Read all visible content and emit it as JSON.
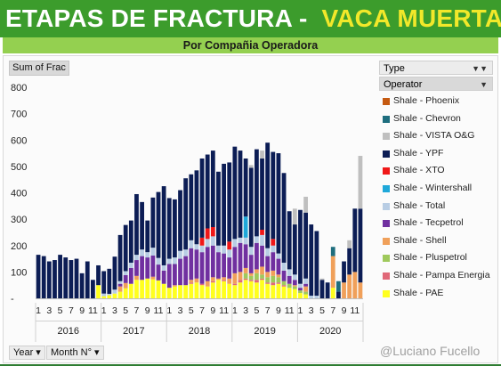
{
  "header": {
    "title_main": "ETAPAS DE FRACTURA -",
    "title_highlight": "VACA MUERTA",
    "subtitle": "Por Compañia Operadora"
  },
  "pivot": {
    "values_field": "Sum of Frac",
    "legend_field": "Type",
    "legend_subfield": "Operator",
    "year_button": "Year",
    "month_button": "Month N°"
  },
  "credit": "@Luciano Fucello",
  "colors": {
    "banner": "#3c9c2c",
    "title_highlight": "#f2e82a",
    "subbar": "#94d050"
  },
  "chart_data": {
    "type": "bar",
    "stacked": true,
    "ylim": [
      0,
      800
    ],
    "yticks": [
      0,
      100,
      200,
      300,
      400,
      500,
      600,
      700,
      800
    ],
    "zero_tick_label": "-",
    "month_labels": [
      "1",
      "3",
      "5",
      "7",
      "9",
      "11"
    ],
    "years": [
      "2016",
      "2017",
      "2018",
      "2019",
      "2020"
    ],
    "series": [
      {
        "name": "Shale - PAE",
        "color": "#ffff1e",
        "values": [
          0,
          0,
          0,
          0,
          0,
          0,
          0,
          0,
          0,
          0,
          0,
          50,
          8,
          12,
          18,
          25,
          38,
          55,
          70,
          70,
          75,
          72,
          68,
          55,
          40,
          45,
          50,
          50,
          55,
          60,
          50,
          45,
          60,
          70,
          65,
          55,
          50,
          60,
          70,
          65,
          60,
          70,
          55,
          50,
          55,
          45,
          40,
          35,
          20,
          15,
          0,
          0,
          0,
          0,
          40,
          0,
          0,
          0,
          0,
          0
        ]
      },
      {
        "name": "Shale - Pampa Energia",
        "color": "#e06878",
        "values": [
          0,
          0,
          0,
          0,
          0,
          0,
          0,
          0,
          0,
          0,
          0,
          0,
          0,
          0,
          0,
          0,
          0,
          0,
          0,
          0,
          0,
          0,
          0,
          0,
          0,
          0,
          0,
          0,
          5,
          0,
          5,
          0,
          5,
          0,
          5,
          0,
          5,
          10,
          5,
          5,
          10,
          5,
          5,
          10,
          5,
          5,
          0,
          0,
          0,
          0,
          0,
          0,
          0,
          0,
          0,
          0,
          0,
          0,
          0,
          0
        ]
      },
      {
        "name": "Shale - Pluspetrol",
        "color": "#9fc95c",
        "values": [
          0,
          0,
          0,
          0,
          0,
          0,
          0,
          0,
          0,
          0,
          0,
          0,
          0,
          0,
          0,
          0,
          0,
          0,
          0,
          0,
          0,
          0,
          0,
          0,
          0,
          0,
          0,
          0,
          0,
          0,
          0,
          0,
          0,
          0,
          0,
          0,
          0,
          0,
          20,
          15,
          25,
          15,
          20,
          25,
          20,
          15,
          15,
          10,
          10,
          10,
          0,
          0,
          0,
          0,
          0,
          0,
          0,
          0,
          0,
          0
        ]
      },
      {
        "name": "Shale - Shell",
        "color": "#f0a05a",
        "values": [
          0,
          0,
          0,
          0,
          0,
          0,
          0,
          0,
          0,
          0,
          0,
          0,
          0,
          0,
          0,
          20,
          20,
          0,
          15,
          0,
          0,
          10,
          0,
          0,
          0,
          5,
          0,
          0,
          10,
          15,
          0,
          20,
          15,
          5,
          10,
          20,
          40,
          30,
          20,
          10,
          15,
          30,
          20,
          20,
          10,
          0,
          0,
          5,
          0,
          20,
          0,
          0,
          0,
          0,
          120,
          0,
          60,
          90,
          100,
          60
        ]
      },
      {
        "name": "Shale - Tecpetrol",
        "color": "#7030a0",
        "values": [
          0,
          0,
          0,
          0,
          0,
          0,
          0,
          0,
          0,
          0,
          0,
          0,
          0,
          0,
          0,
          10,
          30,
          60,
          60,
          90,
          80,
          80,
          60,
          50,
          90,
          80,
          100,
          110,
          120,
          110,
          120,
          130,
          120,
          100,
          90,
          80,
          100,
          110,
          90,
          70,
          100,
          80,
          60,
          70,
          60,
          40,
          30,
          20,
          10,
          10,
          0,
          0,
          0,
          0,
          0,
          0,
          0,
          0,
          0,
          0
        ]
      },
      {
        "name": "Shale - Total",
        "color": "#b8cde4",
        "values": [
          0,
          0,
          0,
          0,
          0,
          0,
          0,
          0,
          0,
          0,
          0,
          0,
          10,
          5,
          15,
          10,
          15,
          20,
          20,
          25,
          20,
          30,
          25,
          20,
          20,
          25,
          30,
          25,
          30,
          20,
          25,
          30,
          35,
          25,
          30,
          30,
          30,
          20,
          25,
          30,
          25,
          40,
          30,
          25,
          20,
          30,
          25,
          20,
          15,
          20,
          10,
          10,
          0,
          0,
          0,
          0,
          0,
          0,
          0,
          0
        ]
      },
      {
        "name": "Shale - Wintershall",
        "color": "#1fa8d9",
        "values": [
          0,
          0,
          0,
          0,
          0,
          0,
          0,
          0,
          0,
          0,
          0,
          0,
          0,
          0,
          0,
          0,
          0,
          0,
          0,
          0,
          0,
          0,
          0,
          0,
          0,
          0,
          0,
          0,
          0,
          0,
          0,
          0,
          0,
          0,
          0,
          0,
          0,
          0,
          80,
          0,
          0,
          0,
          0,
          0,
          0,
          0,
          0,
          0,
          0,
          0,
          0,
          0,
          0,
          0,
          0,
          0,
          0,
          0,
          0,
          0
        ]
      },
      {
        "name": "Shale - XTO",
        "color": "#f01818",
        "values": [
          0,
          0,
          0,
          0,
          0,
          0,
          0,
          0,
          0,
          0,
          0,
          0,
          0,
          0,
          0,
          0,
          0,
          0,
          0,
          0,
          0,
          0,
          0,
          0,
          0,
          0,
          0,
          0,
          0,
          0,
          30,
          40,
          35,
          0,
          0,
          30,
          0,
          0,
          0,
          0,
          0,
          20,
          0,
          25,
          0,
          0,
          0,
          0,
          0,
          0,
          0,
          0,
          0,
          0,
          0,
          0,
          0,
          0,
          0,
          0
        ]
      },
      {
        "name": "Shale - YPF",
        "color": "#0c1d55",
        "values": [
          165,
          160,
          140,
          145,
          165,
          155,
          145,
          150,
          95,
          140,
          70,
          75,
          85,
          95,
          125,
          175,
          175,
          160,
          230,
          180,
          120,
          190,
          250,
          300,
          230,
          220,
          230,
          270,
          250,
          280,
          300,
          280,
          290,
          280,
          310,
          300,
          350,
          330,
          220,
          300,
          330,
          270,
          400,
          330,
          380,
          340,
          220,
          190,
          280,
          250,
          270,
          245,
          70,
          60,
          0,
          25,
          80,
          100,
          240,
          280
        ]
      },
      {
        "name": "Shale - VISTA O&G",
        "color": "#bfbfbf",
        "values": [
          0,
          0,
          0,
          0,
          0,
          0,
          0,
          0,
          0,
          0,
          0,
          0,
          0,
          0,
          0,
          0,
          0,
          0,
          0,
          0,
          0,
          0,
          0,
          0,
          0,
          0,
          0,
          0,
          0,
          0,
          0,
          0,
          0,
          0,
          0,
          0,
          0,
          0,
          0,
          10,
          0,
          30,
          0,
          0,
          0,
          0,
          0,
          60,
          0,
          60,
          0,
          0,
          5,
          0,
          0,
          0,
          0,
          30,
          0,
          200
        ]
      },
      {
        "name": "Shale - Chevron",
        "color": "#1e6e7e",
        "values": [
          0,
          0,
          0,
          0,
          0,
          0,
          0,
          0,
          0,
          0,
          0,
          0,
          0,
          0,
          0,
          0,
          0,
          0,
          0,
          0,
          0,
          0,
          0,
          0,
          0,
          0,
          0,
          0,
          0,
          0,
          0,
          0,
          0,
          0,
          0,
          0,
          0,
          0,
          0,
          0,
          0,
          0,
          0,
          0,
          0,
          0,
          0,
          0,
          0,
          0,
          0,
          0,
          0,
          0,
          35,
          40,
          0,
          0,
          0,
          0
        ]
      },
      {
        "name": "Shale - Phoenix",
        "color": "#c55a11",
        "values": [
          0,
          0,
          0,
          0,
          0,
          0,
          0,
          0,
          0,
          0,
          0,
          0,
          0,
          0,
          0,
          0,
          0,
          0,
          0,
          0,
          0,
          0,
          0,
          0,
          0,
          0,
          0,
          0,
          0,
          0,
          0,
          0,
          0,
          0,
          0,
          0,
          0,
          0,
          0,
          0,
          0,
          0,
          0,
          0,
          0,
          0,
          0,
          0,
          0,
          0,
          0,
          0,
          0,
          0,
          0,
          0,
          0,
          0,
          0,
          0
        ]
      }
    ]
  }
}
